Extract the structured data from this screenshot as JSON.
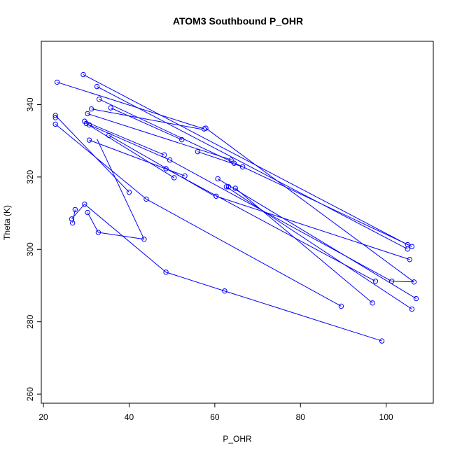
{
  "chart_data": {
    "type": "line",
    "title": "ATOM3 Southbound P_OHR",
    "xlabel": "P_OHR",
    "ylabel": "Theta (K)",
    "xlim": [
      19.5,
      111
    ],
    "ylim": [
      257.5,
      357.5
    ],
    "x_ticks": [
      20,
      40,
      60,
      80,
      100
    ],
    "y_ticks": [
      260,
      280,
      300,
      320,
      340
    ],
    "grid": false,
    "legend": "none",
    "series_color": "#0000ff",
    "marker": "open-circle",
    "segments": [
      {
        "x": [
          29.3,
          105.0
        ],
        "y": [
          348.3,
          301.3
        ]
      },
      {
        "x": [
          32.5,
          105.0
        ],
        "y": [
          345.0,
          300.1
        ]
      },
      {
        "x": [
          33.0,
          106.0
        ],
        "y": [
          341.5,
          300.8
        ]
      },
      {
        "x": [
          23.2,
          57.5
        ],
        "y": [
          346.2,
          333.3
        ]
      },
      {
        "x": [
          31.2,
          56.9
        ],
        "y": [
          338.8,
          333.2
        ]
      },
      {
        "x": [
          35.7,
          52.3
        ],
        "y": [
          339.1,
          330.3
        ]
      },
      {
        "x": [
          30.3,
          64.0
        ],
        "y": [
          337.5,
          324.7
        ]
      },
      {
        "x": [
          57.9,
          106.5
        ],
        "y": [
          333.5,
          291.0
        ]
      },
      {
        "x": [
          56.0,
          66.5
        ],
        "y": [
          327.0,
          322.8
        ]
      },
      {
        "x": [
          22.8,
          40.0
        ],
        "y": [
          337.0,
          315.8
        ]
      },
      {
        "x": [
          22.8,
          44.0
        ],
        "y": [
          334.6,
          313.9
        ]
      },
      {
        "x": [
          44.0,
          89.5
        ],
        "y": [
          313.9,
          284.3
        ]
      },
      {
        "x": [
          29.6,
          48.2
        ],
        "y": [
          335.4,
          326.1
        ]
      },
      {
        "x": [
          30.0,
          50.5
        ],
        "y": [
          334.8,
          319.8
        ]
      },
      {
        "x": [
          30.7,
          49.5
        ],
        "y": [
          334.4,
          324.7
        ]
      },
      {
        "x": [
          35.3,
          60.0
        ],
        "y": [
          331.5,
          314.7
        ]
      },
      {
        "x": [
          30.7,
          53.0
        ],
        "y": [
          330.2,
          320.3
        ]
      },
      {
        "x": [
          48.6,
          97.5
        ],
        "y": [
          322.3,
          291.2
        ]
      },
      {
        "x": [
          49.5,
          101.3
        ],
        "y": [
          324.7,
          291.2
        ]
      },
      {
        "x": [
          60.7,
          107.0
        ],
        "y": [
          319.5,
          286.4
        ]
      },
      {
        "x": [
          62.7,
          106.0
        ],
        "y": [
          317.3,
          283.5
        ]
      },
      {
        "x": [
          64.8,
          96.8
        ],
        "y": [
          316.9,
          285.2
        ]
      },
      {
        "x": [
          60.3,
          105.5
        ],
        "y": [
          314.7,
          297.2
        ]
      },
      {
        "x": [
          32.5,
          43.5
        ],
        "y": [
          330.5,
          302.8
        ]
      },
      {
        "x": [
          29.6,
          48.6
        ],
        "y": [
          312.5,
          293.7
        ]
      },
      {
        "x": [
          48.6,
          62.3
        ],
        "y": [
          293.7,
          288.5
        ]
      },
      {
        "x": [
          62.3,
          99.0
        ],
        "y": [
          288.5,
          274.7
        ]
      },
      {
        "x": [
          30.3,
          32.8
        ],
        "y": [
          310.2,
          304.7
        ]
      },
      {
        "x": [
          32.8,
          43.5
        ],
        "y": [
          304.7,
          302.8
        ]
      },
      {
        "x": [
          26.8,
          27.4
        ],
        "y": [
          307.3,
          311.0
        ]
      },
      {
        "x": [
          26.6,
          29.6
        ],
        "y": [
          308.4,
          312.5
        ]
      },
      {
        "x": [
          101.3,
          106.5
        ],
        "y": [
          291.2,
          291.0
        ]
      }
    ],
    "points": [
      [
        23.2,
        346.2
      ],
      [
        29.3,
        348.3
      ],
      [
        32.5,
        345.0
      ],
      [
        33.0,
        341.5
      ],
      [
        31.2,
        338.8
      ],
      [
        35.7,
        339.1
      ],
      [
        30.3,
        337.5
      ],
      [
        22.8,
        337.0
      ],
      [
        22.8,
        336.4
      ],
      [
        22.8,
        334.6
      ],
      [
        29.6,
        335.4
      ],
      [
        30.0,
        334.8
      ],
      [
        30.7,
        334.4
      ],
      [
        35.3,
        331.5
      ],
      [
        30.7,
        330.2
      ],
      [
        57.5,
        333.3
      ],
      [
        57.9,
        333.5
      ],
      [
        52.3,
        330.3
      ],
      [
        56.0,
        327.0
      ],
      [
        48.2,
        326.1
      ],
      [
        49.5,
        324.7
      ],
      [
        48.6,
        322.3
      ],
      [
        53.0,
        320.3
      ],
      [
        50.5,
        319.8
      ],
      [
        63.8,
        324.7
      ],
      [
        64.5,
        323.8
      ],
      [
        66.5,
        322.8
      ],
      [
        60.7,
        319.5
      ],
      [
        62.7,
        317.3
      ],
      [
        63.2,
        317.3
      ],
      [
        64.8,
        316.9
      ],
      [
        60.3,
        314.7
      ],
      [
        40.0,
        315.8
      ],
      [
        44.0,
        313.9
      ],
      [
        43.5,
        302.8
      ],
      [
        29.6,
        312.5
      ],
      [
        27.4,
        311.0
      ],
      [
        30.3,
        310.2
      ],
      [
        26.6,
        308.4
      ],
      [
        26.8,
        307.3
      ],
      [
        32.8,
        304.7
      ],
      [
        48.6,
        293.7
      ],
      [
        62.3,
        288.5
      ],
      [
        89.5,
        284.3
      ],
      [
        99.0,
        274.7
      ],
      [
        105.0,
        301.3
      ],
      [
        105.0,
        300.1
      ],
      [
        106.0,
        300.8
      ],
      [
        105.5,
        297.2
      ],
      [
        97.5,
        291.2
      ],
      [
        101.3,
        291.2
      ],
      [
        106.5,
        291.0
      ],
      [
        107.0,
        286.4
      ],
      [
        96.8,
        285.2
      ],
      [
        106.0,
        283.5
      ]
    ]
  }
}
